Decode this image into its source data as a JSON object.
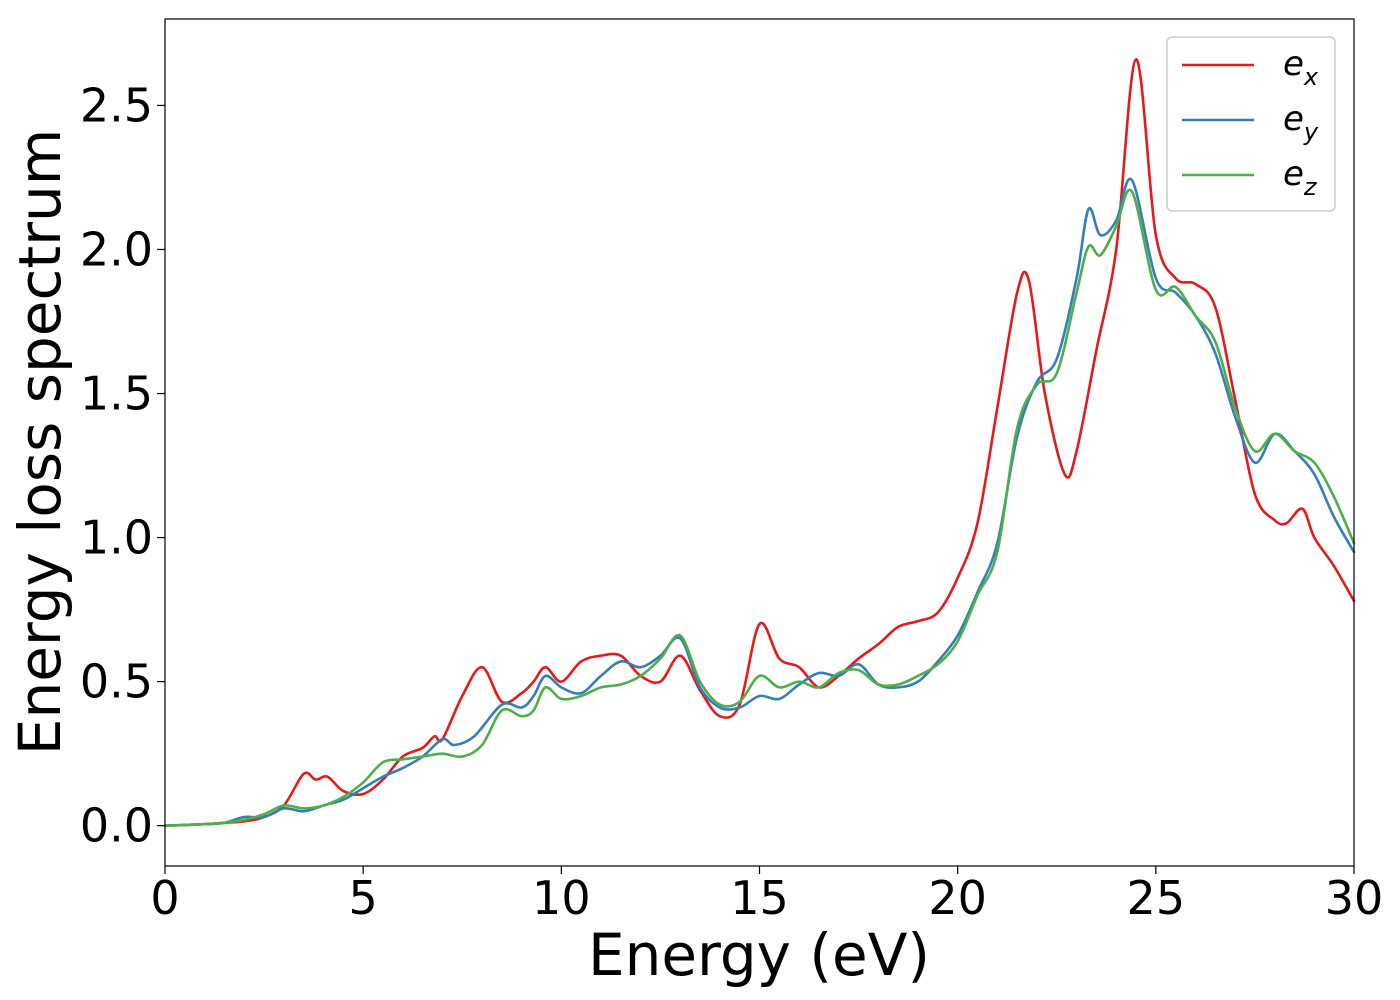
{
  "chart_data": {
    "type": "line",
    "xlabel": "Energy (eV)",
    "ylabel": "Energy loss spectrum",
    "xlim": [
      0,
      30
    ],
    "ylim": [
      -0.14,
      2.8
    ],
    "xticks": [
      "0",
      "5",
      "10",
      "15",
      "20",
      "25",
      "30"
    ],
    "yticks": [
      "0.0",
      "0.5",
      "1.0",
      "1.5",
      "2.0",
      "2.5"
    ],
    "grid": false,
    "legend_position": "top-right",
    "series": [
      {
        "name": "e",
        "subscript": "x",
        "color": "#e41a1c",
        "x": [
          0,
          1,
          1.5,
          2,
          2.5,
          3,
          3.5,
          3.8,
          4.1,
          4.5,
          5,
          5.5,
          6,
          6.5,
          6.8,
          7,
          7.5,
          8,
          8.5,
          9,
          9.3,
          9.6,
          10,
          10.5,
          11,
          11.5,
          12,
          12.5,
          13,
          13.5,
          14,
          14.5,
          15,
          15.5,
          16,
          16.5,
          17,
          17.5,
          18,
          18.5,
          19,
          19.5,
          20,
          20.5,
          21,
          21.5,
          21.8,
          22.2,
          22.7,
          23,
          23.5,
          24,
          24.5,
          25,
          25.5,
          26,
          26.5,
          27,
          27.5,
          28,
          28.3,
          28.7,
          29,
          29.5,
          30
        ],
        "y": [
          0.0,
          0.005,
          0.01,
          0.015,
          0.03,
          0.07,
          0.18,
          0.16,
          0.17,
          0.12,
          0.11,
          0.16,
          0.24,
          0.27,
          0.31,
          0.3,
          0.45,
          0.55,
          0.43,
          0.46,
          0.5,
          0.55,
          0.5,
          0.57,
          0.59,
          0.59,
          0.52,
          0.5,
          0.59,
          0.47,
          0.38,
          0.42,
          0.7,
          0.58,
          0.55,
          0.48,
          0.52,
          0.58,
          0.63,
          0.69,
          0.71,
          0.74,
          0.86,
          1.05,
          1.45,
          1.85,
          1.89,
          1.5,
          1.22,
          1.3,
          1.65,
          2.0,
          2.66,
          2.05,
          1.9,
          1.88,
          1.8,
          1.48,
          1.15,
          1.06,
          1.05,
          1.1,
          1.0,
          0.9,
          0.78
        ]
      },
      {
        "name": "e",
        "subscript": "y",
        "color": "#377eb8",
        "x": [
          0,
          1,
          1.5,
          2,
          2.5,
          3,
          3.5,
          4,
          4.5,
          5,
          5.5,
          6,
          6.5,
          7,
          7.3,
          7.8,
          8.5,
          9,
          9.3,
          9.6,
          10,
          10.5,
          11,
          11.5,
          12,
          12.5,
          13,
          13.5,
          14,
          14.5,
          15,
          15.5,
          16,
          16.5,
          17,
          17.5,
          18,
          18.5,
          19,
          19.5,
          20,
          20.5,
          21,
          21.5,
          22,
          22.5,
          23,
          23.3,
          23.6,
          24,
          24.4,
          25,
          25.5,
          26,
          26.5,
          27,
          27.5,
          28,
          28.5,
          29,
          29.5,
          30
        ],
        "y": [
          0.0,
          0.005,
          0.01,
          0.03,
          0.03,
          0.06,
          0.05,
          0.07,
          0.09,
          0.13,
          0.17,
          0.2,
          0.24,
          0.3,
          0.28,
          0.31,
          0.42,
          0.41,
          0.45,
          0.52,
          0.48,
          0.46,
          0.52,
          0.57,
          0.55,
          0.59,
          0.65,
          0.48,
          0.41,
          0.41,
          0.45,
          0.44,
          0.49,
          0.53,
          0.52,
          0.56,
          0.49,
          0.48,
          0.5,
          0.57,
          0.66,
          0.81,
          0.98,
          1.35,
          1.54,
          1.62,
          1.9,
          2.14,
          2.05,
          2.1,
          2.24,
          1.9,
          1.85,
          1.77,
          1.64,
          1.42,
          1.26,
          1.36,
          1.3,
          1.22,
          1.07,
          0.95
        ]
      },
      {
        "name": "e",
        "subscript": "z",
        "color": "#4daf4a",
        "x": [
          0,
          1,
          1.5,
          2,
          2.5,
          3,
          3.5,
          4,
          4.5,
          5,
          5.5,
          6,
          6.5,
          7,
          7.5,
          8,
          8.5,
          9,
          9.3,
          9.6,
          10,
          10.5,
          11,
          11.5,
          12,
          12.5,
          13,
          13.5,
          14,
          14.5,
          15,
          15.5,
          16,
          16.5,
          17,
          17.5,
          18,
          18.5,
          19,
          19.5,
          20,
          20.5,
          21,
          21.5,
          22,
          22.5,
          23,
          23.3,
          23.6,
          24,
          24.4,
          25,
          25.5,
          26,
          26.5,
          27,
          27.5,
          28,
          28.5,
          29,
          29.5,
          30
        ],
        "y": [
          0.0,
          0.005,
          0.01,
          0.02,
          0.04,
          0.07,
          0.06,
          0.07,
          0.1,
          0.15,
          0.22,
          0.23,
          0.24,
          0.25,
          0.24,
          0.28,
          0.4,
          0.38,
          0.4,
          0.48,
          0.44,
          0.45,
          0.48,
          0.49,
          0.52,
          0.58,
          0.66,
          0.5,
          0.42,
          0.43,
          0.52,
          0.48,
          0.5,
          0.48,
          0.53,
          0.54,
          0.49,
          0.49,
          0.52,
          0.56,
          0.64,
          0.8,
          0.95,
          1.38,
          1.53,
          1.57,
          1.85,
          2.01,
          1.98,
          2.08,
          2.2,
          1.86,
          1.87,
          1.77,
          1.68,
          1.45,
          1.3,
          1.36,
          1.3,
          1.26,
          1.14,
          0.98
        ]
      }
    ]
  }
}
